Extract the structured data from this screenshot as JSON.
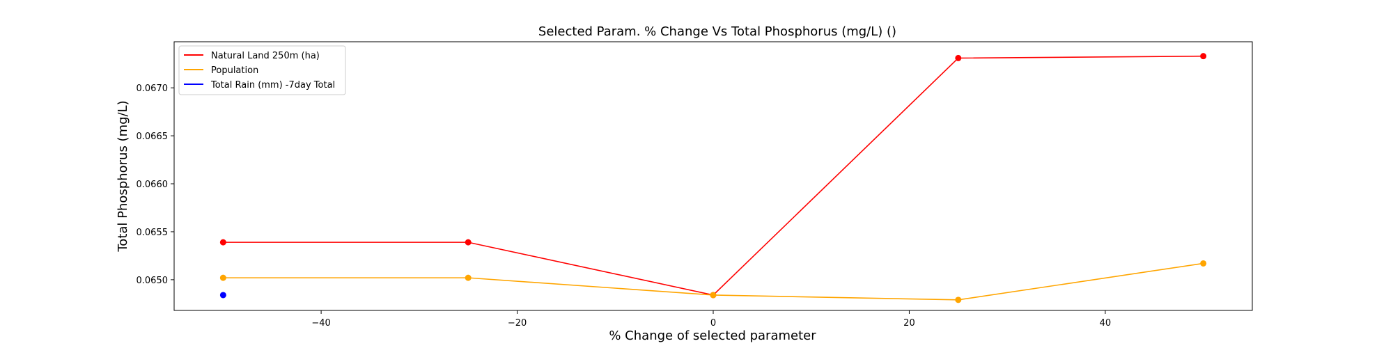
{
  "chart_data": {
    "type": "line",
    "title": "Selected Param. % Change Vs Total Phosphorus (mg/L) ()",
    "xlabel": "% Change of selected parameter",
    "ylabel": "Total Phosphorus (mg/L)",
    "xlim": [
      -55,
      55
    ],
    "ylim": [
      0.06468,
      0.06748
    ],
    "xticks": [
      -40,
      -20,
      0,
      20,
      40
    ],
    "xtick_labels": [
      "−40",
      "−20",
      "0",
      "20",
      "40"
    ],
    "yticks": [
      0.065,
      0.0655,
      0.066,
      0.0665,
      0.067
    ],
    "ytick_labels": [
      "0.0650",
      "0.0655",
      "0.0660",
      "0.0665",
      "0.0670"
    ],
    "grid": false,
    "legend_position": "top-left",
    "series": [
      {
        "name": "Natural Land 250m (ha)",
        "color": "#ff0000",
        "x": [
          -50,
          -25,
          0,
          25,
          50
        ],
        "y": [
          0.06539,
          0.06539,
          0.06484,
          0.06731,
          0.06733
        ]
      },
      {
        "name": "Population",
        "color": "#ffa500",
        "x": [
          -50,
          -25,
          0,
          25,
          50
        ],
        "y": [
          0.06502,
          0.06502,
          0.06484,
          0.06479,
          0.06517
        ]
      },
      {
        "name": "Total Rain (mm) -7day Total",
        "color": "#0000ff",
        "x": [
          -50
        ],
        "y": [
          0.06484
        ]
      }
    ]
  }
}
